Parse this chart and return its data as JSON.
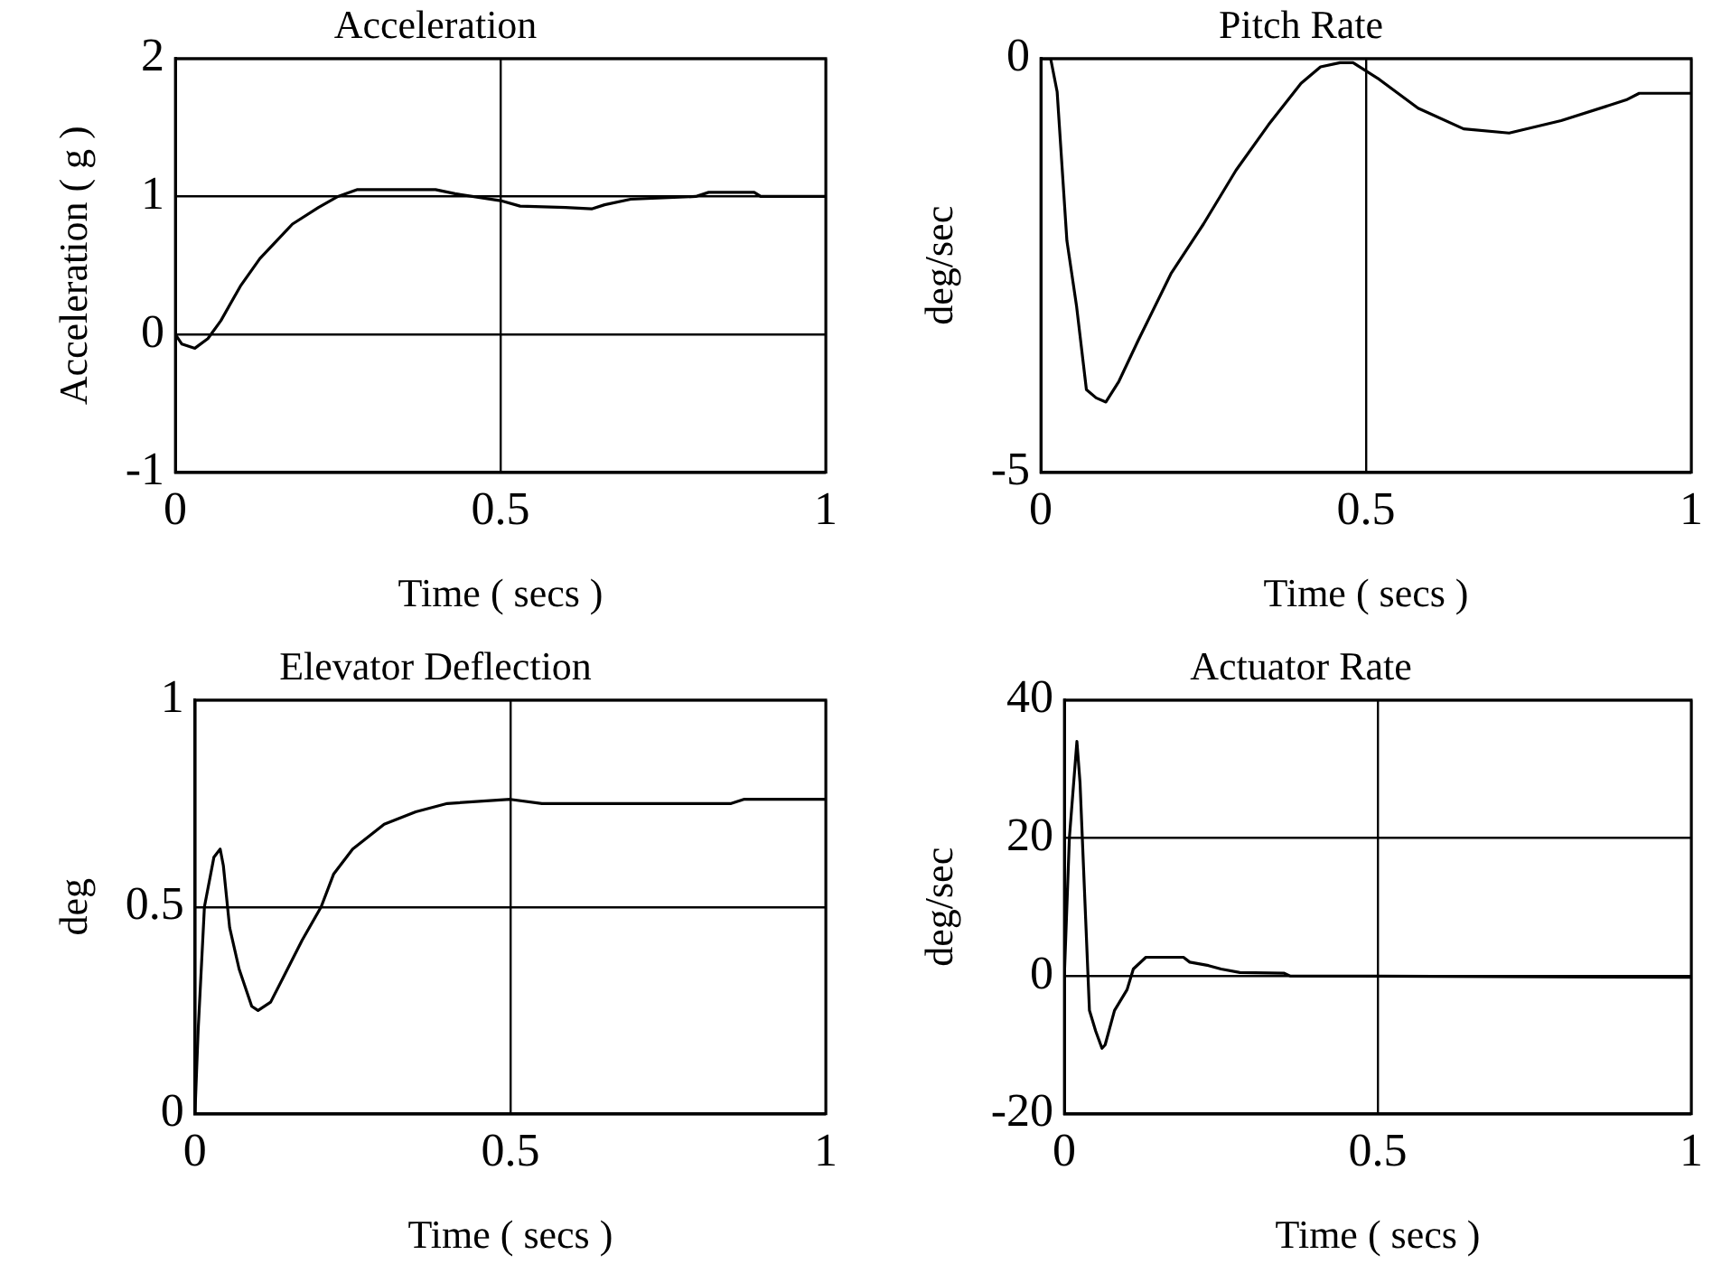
{
  "chart_data": [
    {
      "type": "line",
      "title": "Acceleration",
      "xlabel": "Time ( secs )",
      "ylabel": "Acceleration ( g )",
      "color": "#000000",
      "grid": true,
      "xlim": [
        0,
        1
      ],
      "xticks": [
        0,
        0.5,
        1
      ],
      "ylim": [
        -1,
        2
      ],
      "yticks": [
        -1,
        0,
        1,
        2
      ],
      "x": [
        0,
        0.01,
        0.03,
        0.05,
        0.07,
        0.1,
        0.13,
        0.15,
        0.18,
        0.22,
        0.25,
        0.28,
        0.32,
        0.4,
        0.43,
        0.5,
        0.53,
        0.6,
        0.64,
        0.66,
        0.7,
        0.8,
        0.82,
        0.89,
        0.9,
        1.0
      ],
      "values": [
        0,
        -0.07,
        -0.1,
        -0.03,
        0.1,
        0.35,
        0.55,
        0.65,
        0.8,
        0.92,
        1.0,
        1.05,
        1.05,
        1.05,
        1.02,
        0.97,
        0.93,
        0.92,
        0.91,
        0.94,
        0.98,
        1.0,
        1.03,
        1.03,
        1.0,
        1.0
      ]
    },
    {
      "type": "line",
      "title": "Pitch Rate",
      "xlabel": "Time ( secs )",
      "ylabel": "deg/sec",
      "color": "#000000",
      "grid": true,
      "xlim": [
        0,
        1
      ],
      "xticks": [
        0,
        0.5,
        1
      ],
      "ylim": [
        -5,
        0
      ],
      "yticks": [
        -5,
        0
      ],
      "x": [
        0,
        0.015,
        0.025,
        0.04,
        0.055,
        0.07,
        0.085,
        0.1,
        0.12,
        0.15,
        0.2,
        0.25,
        0.3,
        0.35,
        0.4,
        0.43,
        0.46,
        0.48,
        0.52,
        0.58,
        0.65,
        0.72,
        0.8,
        0.9,
        0.92,
        1.0
      ],
      "values": [
        0,
        0,
        -0.4,
        -2.2,
        -3.0,
        -4.0,
        -4.1,
        -4.15,
        -3.9,
        -3.4,
        -2.6,
        -2.0,
        -1.35,
        -0.8,
        -0.3,
        -0.1,
        -0.05,
        -0.05,
        -0.25,
        -0.6,
        -0.85,
        -0.9,
        -0.75,
        -0.5,
        -0.42,
        -0.42
      ]
    },
    {
      "type": "line",
      "title": "Elevator Deflection",
      "xlabel": "Time ( secs )",
      "ylabel": "deg",
      "color": "#000000",
      "grid": true,
      "xlim": [
        0,
        1
      ],
      "xticks": [
        0,
        0.5,
        1
      ],
      "ylim": [
        0,
        1
      ],
      "yticks": [
        0,
        0.5,
        1
      ],
      "x": [
        0,
        0.005,
        0.015,
        0.03,
        0.04,
        0.045,
        0.055,
        0.07,
        0.09,
        0.1,
        0.12,
        0.14,
        0.17,
        0.2,
        0.22,
        0.25,
        0.3,
        0.35,
        0.4,
        0.5,
        0.55,
        0.85,
        0.87,
        1.0
      ],
      "values": [
        0,
        0.2,
        0.5,
        0.62,
        0.64,
        0.6,
        0.45,
        0.35,
        0.26,
        0.25,
        0.27,
        0.33,
        0.42,
        0.5,
        0.58,
        0.64,
        0.7,
        0.73,
        0.75,
        0.76,
        0.75,
        0.75,
        0.76,
        0.76
      ]
    },
    {
      "type": "line",
      "title": "Actuator Rate",
      "xlabel": "Time ( secs )",
      "ylabel": "deg/sec",
      "color": "#000000",
      "grid": true,
      "xlim": [
        0,
        1
      ],
      "xticks": [
        0,
        0.5,
        1
      ],
      "ylim": [
        -20,
        40
      ],
      "yticks": [
        -20,
        0,
        20,
        40
      ],
      "x": [
        0,
        0.008,
        0.02,
        0.025,
        0.04,
        0.05,
        0.06,
        0.065,
        0.08,
        0.1,
        0.11,
        0.13,
        0.19,
        0.2,
        0.23,
        0.25,
        0.28,
        0.35,
        0.36,
        1.0
      ],
      "values": [
        0,
        20,
        34,
        28,
        -5,
        -8,
        -10.5,
        -10,
        -5,
        -2,
        1,
        2.7,
        2.7,
        2,
        1.5,
        1,
        0.5,
        0.4,
        0,
        -0.2
      ]
    }
  ]
}
